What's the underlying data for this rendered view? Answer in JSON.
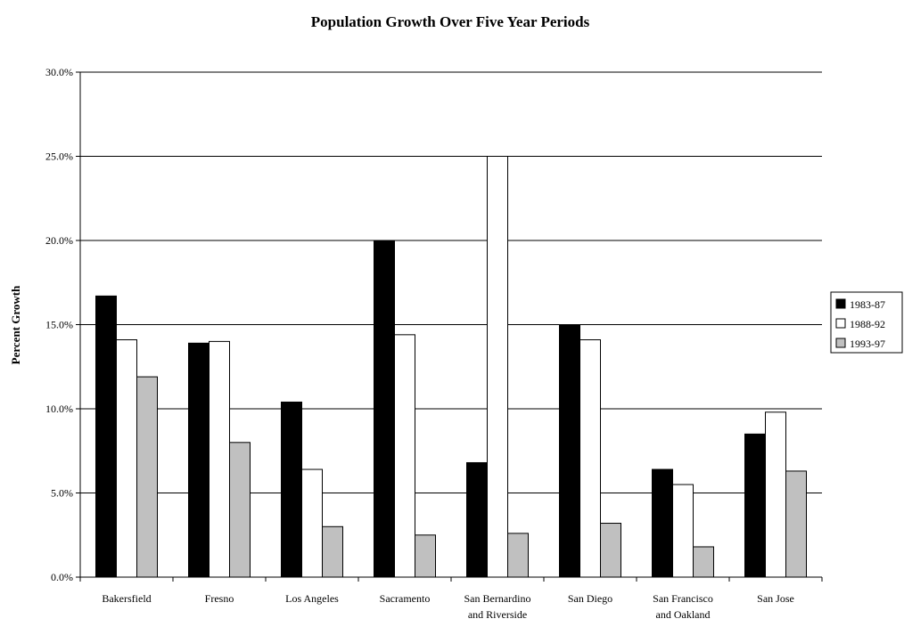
{
  "chart_data": {
    "type": "bar",
    "title": "Population Growth Over Five Year Periods",
    "xlabel": "",
    "ylabel": "Percent Growth",
    "ylim": [
      0,
      30
    ],
    "yticks": [
      "0.0%",
      "5.0%",
      "10.0%",
      "15.0%",
      "20.0%",
      "25.0%",
      "30.0%"
    ],
    "grid": true,
    "legend_position": "right",
    "categories": [
      [
        "Bakersfield"
      ],
      [
        "Fresno"
      ],
      [
        "Los Angeles"
      ],
      [
        "Sacramento"
      ],
      [
        "San Bernardino",
        "and Riverside"
      ],
      [
        "San Diego"
      ],
      [
        "San Francisco",
        "and Oakland"
      ],
      [
        "San Jose"
      ]
    ],
    "series": [
      {
        "name": "1983-87",
        "color": "#000000",
        "values": [
          16.7,
          13.9,
          10.4,
          20.0,
          6.8,
          15.0,
          6.4,
          8.5
        ]
      },
      {
        "name": "1988-92",
        "color": "#ffffff",
        "values": [
          14.1,
          14.0,
          6.4,
          14.4,
          25.0,
          14.1,
          5.5,
          9.8
        ]
      },
      {
        "name": "1993-97",
        "color": "#c0c0c0",
        "values": [
          11.9,
          8.0,
          3.0,
          2.5,
          2.6,
          3.2,
          1.8,
          6.3
        ]
      }
    ]
  }
}
